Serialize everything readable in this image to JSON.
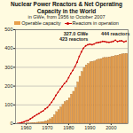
{
  "chart_data": {
    "type": "bar",
    "title": "Nuclear Power Reactors & Net Operating Capacity in the World",
    "subtitle": "in GWe, from 1956 to October 2007",
    "x": [
      1956,
      1957,
      1958,
      1959,
      1960,
      1961,
      1962,
      1963,
      1964,
      1965,
      1966,
      1967,
      1968,
      1969,
      1970,
      1971,
      1972,
      1973,
      1974,
      1975,
      1976,
      1977,
      1978,
      1979,
      1980,
      1981,
      1982,
      1983,
      1984,
      1985,
      1986,
      1987,
      1988,
      1989,
      1990,
      1991,
      1992,
      1993,
      1994,
      1995,
      1996,
      1997,
      1998,
      1999,
      2000,
      2001,
      2002,
      2003,
      2004,
      2005,
      2006,
      2007
    ],
    "series": [
      {
        "name": "Operable capacity",
        "type": "bar",
        "color": "#e8a04c",
        "values": [
          0.05,
          0.1,
          0.2,
          0.5,
          1,
          1.5,
          2,
          3,
          4,
          5,
          6,
          8,
          9,
          13,
          16,
          24,
          32,
          45,
          62,
          72,
          87,
          100,
          115,
          122,
          135,
          155,
          170,
          190,
          220,
          250,
          275,
          297,
          310,
          318,
          327.0,
          329,
          331,
          338,
          341,
          344,
          349,
          350,
          350,
          353,
          355,
          357,
          361,
          362,
          367,
          369,
          370,
          372
        ]
      },
      {
        "name": "Reactors in operation",
        "type": "line",
        "color": "#cc0000",
        "marker": "circle",
        "values": [
          1,
          3,
          6,
          10,
          15,
          18,
          26,
          33,
          41,
          48,
          54,
          62,
          68,
          79,
          86,
          100,
          114,
          131,
          151,
          167,
          184,
          198,
          214,
          225,
          245,
          267,
          284,
          304,
          327,
          358,
          382,
          402,
          414,
          420,
          423,
          420,
          424,
          430,
          432,
          434,
          438,
          437,
          434,
          433,
          435,
          438,
          444,
          437,
          440,
          441,
          435,
          439
        ]
      }
    ],
    "xlim": [
      1955,
      2008
    ],
    "xticks": [
      1960,
      1970,
      1980,
      1990,
      2000
    ],
    "ylim": [
      0,
      500
    ],
    "yticks": [
      0,
      100,
      200,
      300,
      400,
      500
    ],
    "grid": true,
    "legend": "top",
    "annotations": [
      {
        "x": 1990,
        "text": "327.0 GWe"
      },
      {
        "x": 1990,
        "text": "423 reactors"
      },
      {
        "x": 2002,
        "text": "444 reactors"
      }
    ]
  }
}
